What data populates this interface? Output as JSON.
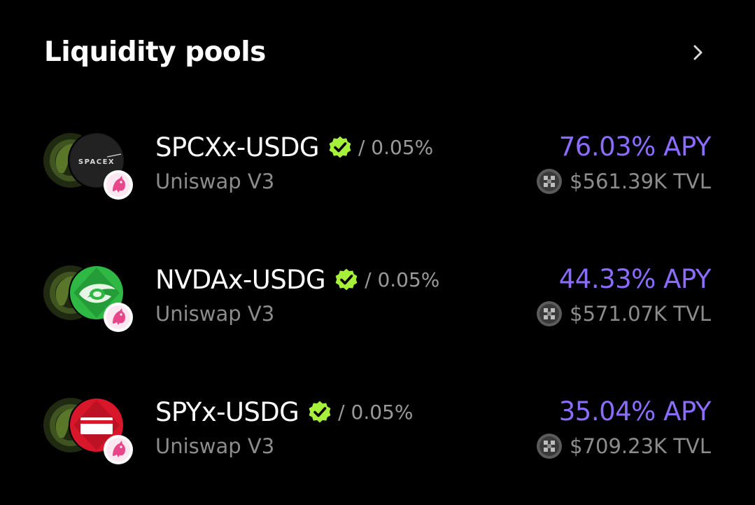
{
  "header": {
    "title": "Liquidity pools",
    "more_icon": "chevron-right-icon"
  },
  "pools": [
    {
      "pair": "SPCXx-USDG",
      "fee": "/ 0.05%",
      "dex": "Uniswap V3",
      "apy": "76.03% APY",
      "tvl": "$561.39K TVL",
      "token_logo_text": "SPACEX",
      "token_icon": "spacex-logo-icon",
      "base_icon": "usdg-logo-icon",
      "dex_icon": "uniswap-unicorn-icon",
      "chain_icon": "chain-logo-icon",
      "verified_icon": "verified-badge-icon"
    },
    {
      "pair": "NVDAx-USDG",
      "fee": "/ 0.05%",
      "dex": "Uniswap V3",
      "apy": "44.33% APY",
      "tvl": "$571.07K TVL",
      "token_icon": "nvidia-eye-logo-icon",
      "base_icon": "usdg-logo-icon",
      "dex_icon": "uniswap-unicorn-icon",
      "chain_icon": "chain-logo-icon",
      "verified_icon": "verified-badge-icon"
    },
    {
      "pair": "SPYx-USDG",
      "fee": "/ 0.05%",
      "dex": "Uniswap V3",
      "apy": "35.04% APY",
      "tvl": "$709.23K TVL",
      "token_icon": "spy-logo-icon",
      "base_icon": "usdg-logo-icon",
      "dex_icon": "uniswap-unicorn-icon",
      "chain_icon": "chain-logo-icon",
      "verified_icon": "verified-badge-icon"
    }
  ],
  "colors": {
    "background": "#000000",
    "apy": "#8c6cff",
    "verified": "#a6f03c",
    "muted_text": "#8c8c8c",
    "usdg_green": "#3a4a1e",
    "nvidia_green": "#2fb944",
    "spy_red": "#d8172a"
  }
}
